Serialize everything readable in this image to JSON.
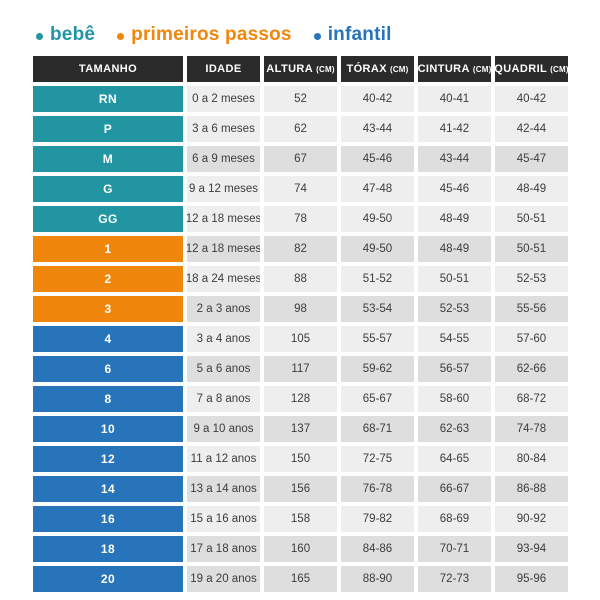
{
  "colors": {
    "bebe": "#2295a3",
    "primeiros_passos": "#f1860d",
    "infantil": "#2774ba",
    "header_bg": "#2b2b2b",
    "row_light": "#eeeeee",
    "row_dark": "#dedede"
  },
  "legend": {
    "items": [
      {
        "label": "bebê",
        "group": "bebe"
      },
      {
        "label": "primeiros passos",
        "group": "primeiros-passos"
      },
      {
        "label": "infantil",
        "group": "infantil"
      }
    ]
  },
  "table": {
    "headers": [
      {
        "label": "TAMANHO",
        "unit": ""
      },
      {
        "label": "IDADE",
        "unit": ""
      },
      {
        "label": "ALTURA",
        "unit": "(CM)"
      },
      {
        "label": "TÓRAX",
        "unit": "(CM)"
      },
      {
        "label": "CINTURA",
        "unit": "(CM)"
      },
      {
        "label": "QUADRIL",
        "unit": "(CM)"
      }
    ],
    "rows": [
      {
        "size": "RN",
        "age": "0 a 2 meses",
        "height": "52",
        "chest": "40-42",
        "waist": "40-41",
        "hip": "40-42",
        "group": "bebe",
        "shaded": false
      },
      {
        "size": "P",
        "age": "3 a 6 meses",
        "height": "62",
        "chest": "43-44",
        "waist": "41-42",
        "hip": "42-44",
        "group": "bebe",
        "shaded": false
      },
      {
        "size": "M",
        "age": "6 a 9 meses",
        "height": "67",
        "chest": "45-46",
        "waist": "43-44",
        "hip": "45-47",
        "group": "bebe",
        "shaded": true
      },
      {
        "size": "G",
        "age": "9 a 12 meses",
        "height": "74",
        "chest": "47-48",
        "waist": "45-46",
        "hip": "48-49",
        "group": "bebe",
        "shaded": false
      },
      {
        "size": "GG",
        "age": "12 a 18 meses",
        "height": "78",
        "chest": "49-50",
        "waist": "48-49",
        "hip": "50-51",
        "group": "bebe",
        "shaded": false
      },
      {
        "size": "1",
        "age": "12 a 18 meses",
        "height": "82",
        "chest": "49-50",
        "waist": "48-49",
        "hip": "50-51",
        "group": "primeiros-passos",
        "shaded": true
      },
      {
        "size": "2",
        "age": "18 a 24 meses",
        "height": "88",
        "chest": "51-52",
        "waist": "50-51",
        "hip": "52-53",
        "group": "primeiros-passos",
        "shaded": false
      },
      {
        "size": "3",
        "age": "2 a 3 anos",
        "height": "98",
        "chest": "53-54",
        "waist": "52-53",
        "hip": "55-56",
        "group": "primeiros-passos",
        "shaded": true
      },
      {
        "size": "4",
        "age": "3 a 4 anos",
        "height": "105",
        "chest": "55-57",
        "waist": "54-55",
        "hip": "57-60",
        "group": "infantil",
        "shaded": false
      },
      {
        "size": "6",
        "age": "5 a 6 anos",
        "height": "117",
        "chest": "59-62",
        "waist": "56-57",
        "hip": "62-66",
        "group": "infantil",
        "shaded": true
      },
      {
        "size": "8",
        "age": "7 a 8 anos",
        "height": "128",
        "chest": "65-67",
        "waist": "58-60",
        "hip": "68-72",
        "group": "infantil",
        "shaded": false
      },
      {
        "size": "10",
        "age": "9 a 10 anos",
        "height": "137",
        "chest": "68-71",
        "waist": "62-63",
        "hip": "74-78",
        "group": "infantil",
        "shaded": true
      },
      {
        "size": "12",
        "age": "11 a 12 anos",
        "height": "150",
        "chest": "72-75",
        "waist": "64-65",
        "hip": "80-84",
        "group": "infantil",
        "shaded": false
      },
      {
        "size": "14",
        "age": "13 a 14 anos",
        "height": "156",
        "chest": "76-78",
        "waist": "66-67",
        "hip": "86-88",
        "group": "infantil",
        "shaded": true
      },
      {
        "size": "16",
        "age": "15 a 16 anos",
        "height": "158",
        "chest": "79-82",
        "waist": "68-69",
        "hip": "90-92",
        "group": "infantil",
        "shaded": false
      },
      {
        "size": "18",
        "age": "17 a 18 anos",
        "height": "160",
        "chest": "84-86",
        "waist": "70-71",
        "hip": "93-94",
        "group": "infantil",
        "shaded": true
      },
      {
        "size": "20",
        "age": "19 a 20 anos",
        "height": "165",
        "chest": "88-90",
        "waist": "72-73",
        "hip": "95-96",
        "group": "infantil",
        "shaded": true
      }
    ]
  },
  "chart_data": {
    "type": "table",
    "title": "",
    "legend_entries": [
      "bebê",
      "primeiros passos",
      "infantil"
    ],
    "columns": [
      "TAMANHO",
      "IDADE",
      "ALTURA (CM)",
      "TÓRAX (CM)",
      "CINTURA (CM)",
      "QUADRIL (CM)"
    ],
    "rows": [
      [
        "RN",
        "0 a 2 meses",
        "52",
        "40-42",
        "40-41",
        "40-42"
      ],
      [
        "P",
        "3 a 6 meses",
        "62",
        "43-44",
        "41-42",
        "42-44"
      ],
      [
        "M",
        "6 a 9 meses",
        "67",
        "45-46",
        "43-44",
        "45-47"
      ],
      [
        "G",
        "9 a 12 meses",
        "74",
        "47-48",
        "45-46",
        "48-49"
      ],
      [
        "GG",
        "12 a 18 meses",
        "78",
        "49-50",
        "48-49",
        "50-51"
      ],
      [
        "1",
        "12 a 18 meses",
        "82",
        "49-50",
        "48-49",
        "50-51"
      ],
      [
        "2",
        "18 a 24 meses",
        "88",
        "51-52",
        "50-51",
        "52-53"
      ],
      [
        "3",
        "2 a 3 anos",
        "98",
        "53-54",
        "52-53",
        "55-56"
      ],
      [
        "4",
        "3 a 4 anos",
        "105",
        "55-57",
        "54-55",
        "57-60"
      ],
      [
        "6",
        "5 a 6 anos",
        "117",
        "59-62",
        "56-57",
        "62-66"
      ],
      [
        "8",
        "7 a 8 anos",
        "128",
        "65-67",
        "58-60",
        "68-72"
      ],
      [
        "10",
        "9 a 10 anos",
        "137",
        "68-71",
        "62-63",
        "74-78"
      ],
      [
        "12",
        "11 a 12 anos",
        "150",
        "72-75",
        "64-65",
        "80-84"
      ],
      [
        "14",
        "13 a 14 anos",
        "156",
        "76-78",
        "66-67",
        "86-88"
      ],
      [
        "16",
        "15 a 16 anos",
        "158",
        "79-82",
        "68-69",
        "90-92"
      ],
      [
        "18",
        "17 a 18 anos",
        "160",
        "84-86",
        "70-71",
        "93-94"
      ],
      [
        "20",
        "19 a 20 anos",
        "165",
        "88-90",
        "72-73",
        "95-96"
      ]
    ],
    "row_category": [
      "bebê",
      "bebê",
      "bebê",
      "bebê",
      "bebê",
      "primeiros passos",
      "primeiros passos",
      "primeiros passos",
      "infantil",
      "infantil",
      "infantil",
      "infantil",
      "infantil",
      "infantil",
      "infantil",
      "infantil",
      "infantil"
    ]
  }
}
